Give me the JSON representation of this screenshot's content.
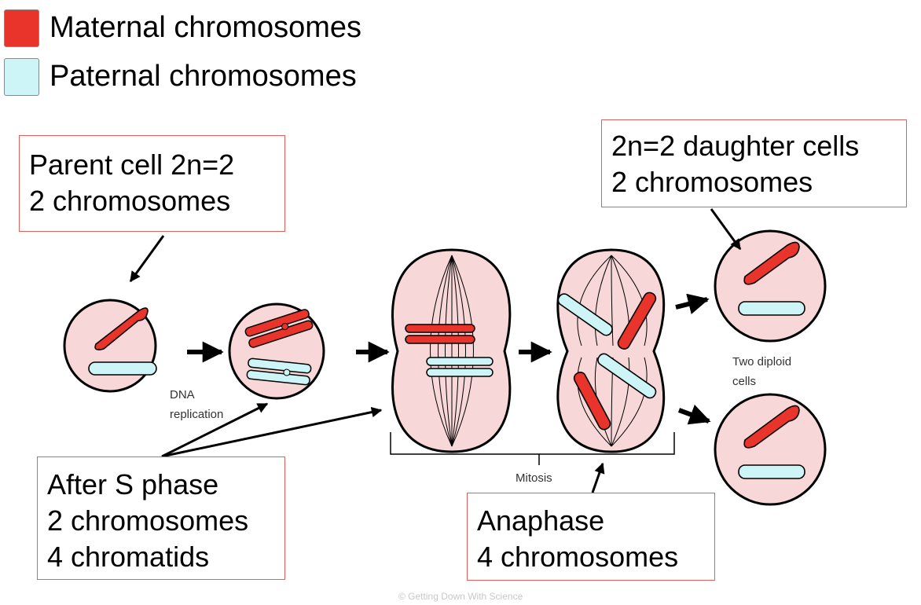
{
  "legend": {
    "maternal": {
      "label": "Maternal chromosomes",
      "color": "#e8342b"
    },
    "paternal": {
      "label": "Paternal chromosomes",
      "color": "#cdf4f6"
    }
  },
  "callouts": {
    "parent": {
      "line1": "Parent cell 2n=2",
      "line2": "2 chromosomes"
    },
    "daughter": {
      "line1": "2n=2 daughter cells",
      "line2": "2 chromosomes"
    },
    "s_phase": {
      "line1": "After S phase",
      "line2": "2 chromosomes",
      "line3": "4 chromatids"
    },
    "anaphase": {
      "line1": "Anaphase",
      "line2": "4 chromosomes"
    }
  },
  "labels": {
    "dna": "DNA",
    "replication": "replication",
    "mitosis": "Mitosis",
    "two_diploid": "Two diploid",
    "cells": "cells"
  },
  "credit": "© Getting Down With Science",
  "colors": {
    "cell_fill": "#f7d7d7",
    "outline": "#000000",
    "note_border": "#e0605a"
  }
}
